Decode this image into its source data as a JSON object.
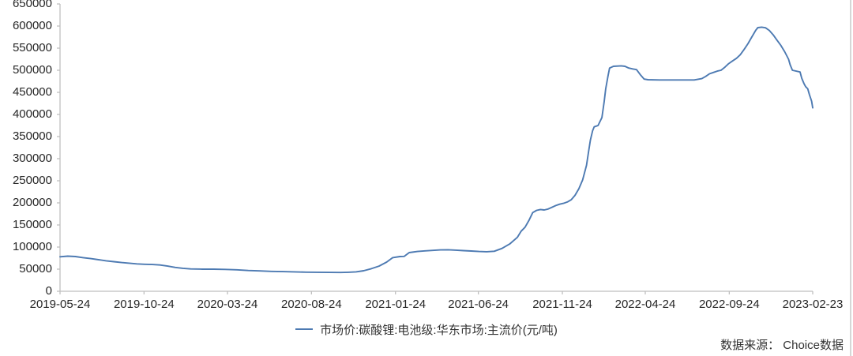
{
  "accent_color": "#4d7ab2",
  "axis_color": "#bfbfbf",
  "text_color": "#262626",
  "source_note": "数据来源： Choice数据",
  "legend": {
    "position": "bottom-center",
    "label": "市场价:碳酸锂:电池级:华东市场:主流价(元/吨)"
  },
  "chart_data": {
    "type": "line",
    "title": "",
    "xlabel": "",
    "ylabel": "",
    "ylim": [
      0,
      650000
    ],
    "y_tick_step": 50000,
    "y_tick_labels": [
      "650000",
      "600000",
      "550000",
      "500000",
      "450000",
      "400000",
      "350000",
      "300000",
      "250000",
      "200000",
      "150000",
      "100000",
      "50000",
      "0"
    ],
    "x_tick_labels": [
      "2019-05-24",
      "2019-10-24",
      "2020-03-24",
      "2020-08-24",
      "2021-01-24",
      "2021-06-24",
      "2021-11-24",
      "2022-04-24",
      "2022-09-24",
      "2023-02-23"
    ],
    "grid": false,
    "legend_entries": [
      "市场价:碳酸锂:电池级:华东市场:主流价(元/吨)"
    ],
    "series": [
      {
        "name": "市场价:碳酸锂:电池级:华东市场:主流价(元/吨)",
        "color": "#4d7ab2",
        "points": [
          [
            "2019-05-24",
            78000
          ],
          [
            "2019-06-07",
            79500
          ],
          [
            "2019-06-21",
            78500
          ],
          [
            "2019-07-05",
            76000
          ],
          [
            "2019-07-19",
            74000
          ],
          [
            "2019-08-02",
            71500
          ],
          [
            "2019-08-16",
            69000
          ],
          [
            "2019-08-30",
            67000
          ],
          [
            "2019-09-13",
            65000
          ],
          [
            "2019-09-27",
            63500
          ],
          [
            "2019-10-11",
            62000
          ],
          [
            "2019-10-25",
            61000
          ],
          [
            "2019-11-08",
            60500
          ],
          [
            "2019-11-22",
            59500
          ],
          [
            "2019-12-06",
            57000
          ],
          [
            "2019-12-20",
            54000
          ],
          [
            "2020-01-03",
            52000
          ],
          [
            "2020-01-17",
            50500
          ],
          [
            "2020-02-07",
            50000
          ],
          [
            "2020-02-28",
            50000
          ],
          [
            "2020-03-20",
            49500
          ],
          [
            "2020-04-10",
            48500
          ],
          [
            "2020-05-01",
            47000
          ],
          [
            "2020-05-22",
            46000
          ],
          [
            "2020-06-12",
            45000
          ],
          [
            "2020-07-03",
            44500
          ],
          [
            "2020-07-24",
            44000
          ],
          [
            "2020-08-14",
            43200
          ],
          [
            "2020-09-04",
            43000
          ],
          [
            "2020-09-25",
            42600
          ],
          [
            "2020-10-16",
            42500
          ],
          [
            "2020-10-30",
            43000
          ],
          [
            "2020-11-13",
            44000
          ],
          [
            "2020-11-27",
            46500
          ],
          [
            "2020-12-11",
            51000
          ],
          [
            "2020-12-25",
            57000
          ],
          [
            "2021-01-08",
            66000
          ],
          [
            "2021-01-19",
            76000
          ],
          [
            "2021-02-01",
            78500
          ],
          [
            "2021-02-09",
            79000
          ],
          [
            "2021-02-18",
            87500
          ],
          [
            "2021-03-05",
            90000
          ],
          [
            "2021-03-19",
            91500
          ],
          [
            "2021-04-02",
            92500
          ],
          [
            "2021-04-16",
            93500
          ],
          [
            "2021-04-30",
            94000
          ],
          [
            "2021-05-14",
            93000
          ],
          [
            "2021-05-28",
            92000
          ],
          [
            "2021-06-11",
            91000
          ],
          [
            "2021-06-25",
            90000
          ],
          [
            "2021-07-09",
            89500
          ],
          [
            "2021-07-23",
            90500
          ],
          [
            "2021-08-06",
            97000
          ],
          [
            "2021-08-20",
            107000
          ],
          [
            "2021-09-03",
            122000
          ],
          [
            "2021-09-10",
            136000
          ],
          [
            "2021-09-17",
            145000
          ],
          [
            "2021-09-24",
            160000
          ],
          [
            "2021-10-01",
            178000
          ],
          [
            "2021-10-08",
            183000
          ],
          [
            "2021-10-15",
            185000
          ],
          [
            "2021-10-22",
            184000
          ],
          [
            "2021-10-29",
            186000
          ],
          [
            "2021-11-05",
            190000
          ],
          [
            "2021-11-12",
            194000
          ],
          [
            "2021-11-19",
            197000
          ],
          [
            "2021-11-26",
            199000
          ],
          [
            "2021-12-03",
            202000
          ],
          [
            "2021-12-10",
            207000
          ],
          [
            "2021-12-17",
            217000
          ],
          [
            "2021-12-24",
            232000
          ],
          [
            "2021-12-31",
            252000
          ],
          [
            "2022-01-07",
            285000
          ],
          [
            "2022-01-11",
            318000
          ],
          [
            "2022-01-14",
            342000
          ],
          [
            "2022-01-18",
            363000
          ],
          [
            "2022-01-21",
            372000
          ],
          [
            "2022-01-28",
            375000
          ],
          [
            "2022-02-04",
            393000
          ],
          [
            "2022-02-08",
            428000
          ],
          [
            "2022-02-11",
            458000
          ],
          [
            "2022-02-15",
            486000
          ],
          [
            "2022-02-18",
            505000
          ],
          [
            "2022-02-25",
            509000
          ],
          [
            "2022-03-11",
            510000
          ],
          [
            "2022-03-18",
            509000
          ],
          [
            "2022-03-25",
            505000
          ],
          [
            "2022-04-01",
            503000
          ],
          [
            "2022-04-08",
            501500
          ],
          [
            "2022-04-15",
            490000
          ],
          [
            "2022-04-22",
            480000
          ],
          [
            "2022-04-29",
            478500
          ],
          [
            "2022-05-20",
            478000
          ],
          [
            "2022-06-10",
            478000
          ],
          [
            "2022-07-01",
            478000
          ],
          [
            "2022-07-22",
            478000
          ],
          [
            "2022-08-05",
            481000
          ],
          [
            "2022-08-12",
            486000
          ],
          [
            "2022-08-19",
            492000
          ],
          [
            "2022-08-26",
            495000
          ],
          [
            "2022-09-02",
            498000
          ],
          [
            "2022-09-09",
            500000
          ],
          [
            "2022-09-16",
            507000
          ],
          [
            "2022-09-23",
            515000
          ],
          [
            "2022-09-30",
            521000
          ],
          [
            "2022-10-07",
            527000
          ],
          [
            "2022-10-14",
            535000
          ],
          [
            "2022-10-21",
            547000
          ],
          [
            "2022-10-28",
            560000
          ],
          [
            "2022-11-04",
            575000
          ],
          [
            "2022-11-11",
            590000
          ],
          [
            "2022-11-15",
            596500
          ],
          [
            "2022-11-22",
            597500
          ],
          [
            "2022-11-29",
            596000
          ],
          [
            "2022-12-06",
            590000
          ],
          [
            "2022-12-13",
            580000
          ],
          [
            "2022-12-20",
            568000
          ],
          [
            "2022-12-27",
            556000
          ],
          [
            "2023-01-03",
            542000
          ],
          [
            "2023-01-10",
            525000
          ],
          [
            "2023-01-13",
            512000
          ],
          [
            "2023-01-17",
            500000
          ],
          [
            "2023-01-31",
            496000
          ],
          [
            "2023-02-03",
            482000
          ],
          [
            "2023-02-07",
            470000
          ],
          [
            "2023-02-10",
            463000
          ],
          [
            "2023-02-14",
            458000
          ],
          [
            "2023-02-17",
            445000
          ],
          [
            "2023-02-21",
            430000
          ],
          [
            "2023-02-23",
            415000
          ]
        ]
      }
    ]
  }
}
